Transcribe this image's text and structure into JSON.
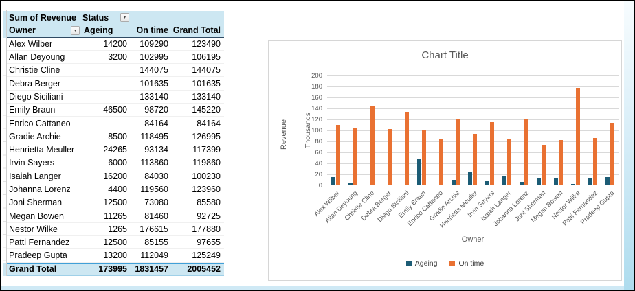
{
  "colors": {
    "header_fill": "#CDE7F2",
    "total_border": "#41A0D8",
    "ageing": "#1C5C75",
    "on_time": "#E97132"
  },
  "table": {
    "header1": {
      "field": "Sum of Revenue",
      "column_field": "Status"
    },
    "header2": {
      "row_field": "Owner",
      "cols": [
        "Ageing",
        "On time",
        "Grand Total"
      ]
    },
    "rows": [
      [
        "Alex Wilber",
        "14200",
        "109290",
        "123490"
      ],
      [
        "Allan Deyoung",
        "3200",
        "102995",
        "106195"
      ],
      [
        "Christie Cline",
        "",
        "144075",
        "144075"
      ],
      [
        "Debra Berger",
        "",
        "101635",
        "101635"
      ],
      [
        "Diego Siciliani",
        "",
        "133140",
        "133140"
      ],
      [
        "Emily Braun",
        "46500",
        "98720",
        "145220"
      ],
      [
        "Enrico Cattaneo",
        "",
        "84164",
        "84164"
      ],
      [
        "Gradie Archie",
        "8500",
        "118495",
        "126995"
      ],
      [
        "Henrietta Meuller",
        "24265",
        "93134",
        "117399"
      ],
      [
        "Irvin Sayers",
        "6000",
        "113860",
        "119860"
      ],
      [
        "Isaiah Langer",
        "16200",
        "84030",
        "100230"
      ],
      [
        "Johanna Lorenz",
        "4400",
        "119560",
        "123960"
      ],
      [
        "Joni Sherman",
        "12500",
        "73080",
        "85580"
      ],
      [
        "Megan Bowen",
        "11265",
        "81460",
        "92725"
      ],
      [
        "Nestor Wilke",
        "1265",
        "176615",
        "177880"
      ],
      [
        "Patti Fernandez",
        "12500",
        "85155",
        "97655"
      ],
      [
        "Pradeep Gupta",
        "13200",
        "112049",
        "125249"
      ]
    ],
    "grand_total": [
      "Grand Total",
      "173995",
      "1831457",
      "2005452"
    ]
  },
  "chart_data": {
    "type": "bar",
    "title": "Chart Title",
    "xlabel": "Owner",
    "ylabel": "Revenue",
    "units_label": "Thousands",
    "ylim": [
      0,
      200
    ],
    "ytick_step": 20,
    "grid": true,
    "legend_position": "bottom",
    "categories": [
      "Alex Wilber",
      "Allan Deyoung",
      "Christie Cline",
      "Debra Berger",
      "Diego Siciliani",
      "Emily Braun",
      "Enrico Cattaneo",
      "Gradie Archie",
      "Henrietta Meuller",
      "Irvin Sayers",
      "Isaiah Langer",
      "Johanna Lorenz",
      "Joni Sherman",
      "Megan Bowen",
      "Nestor Wilke",
      "Patti Fernandez",
      "Pradeep Gupta"
    ],
    "series": [
      {
        "name": "Ageing",
        "color": "#1C5C75",
        "values": [
          14.2,
          3.2,
          0,
          0,
          0,
          46.5,
          0,
          8.5,
          24.265,
          6.0,
          16.2,
          4.4,
          12.5,
          11.265,
          1.265,
          12.5,
          13.2
        ]
      },
      {
        "name": "On time",
        "color": "#E97132",
        "values": [
          109.29,
          102.995,
          144.075,
          101.635,
          133.14,
          98.72,
          84.164,
          118.495,
          93.134,
          113.86,
          84.03,
          119.56,
          73.08,
          81.46,
          176.615,
          85.155,
          112.049
        ]
      }
    ]
  }
}
